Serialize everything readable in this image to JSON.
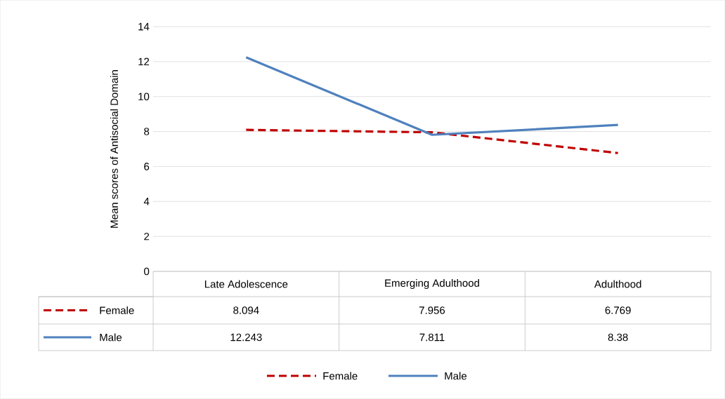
{
  "chart_data": {
    "type": "line",
    "ylabel": "Mean scores of Antisocial Domain",
    "categories": [
      "Late Adolescence",
      "Emerging Adulthood",
      "Adulthood"
    ],
    "series": [
      {
        "name": "Female",
        "color": "#c00000",
        "line_style": "dashed",
        "values": [
          8.094,
          7.956,
          6.769
        ]
      },
      {
        "name": "Male",
        "color": "#4f81bd",
        "line_style": "solid",
        "values": [
          12.243,
          7.811,
          8.38
        ]
      }
    ],
    "ylim": [
      0,
      14
    ],
    "yticks": [
      0,
      2,
      4,
      6,
      8,
      10,
      12,
      14
    ],
    "grid": "y",
    "legend": "bottom",
    "data_labels": true
  }
}
